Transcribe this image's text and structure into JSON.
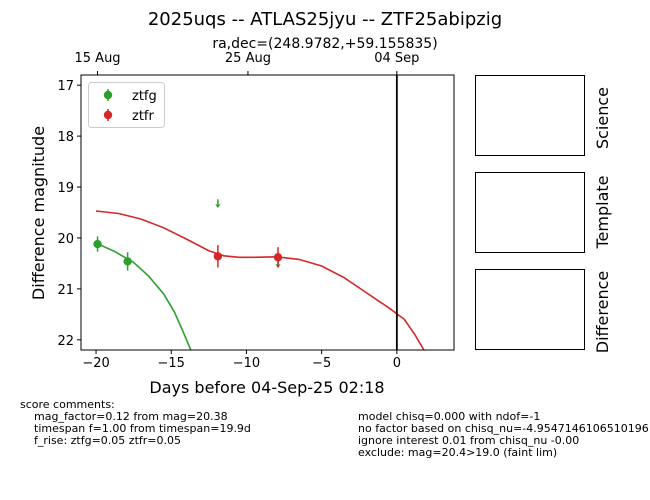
{
  "figure": {
    "title": "2025uqs -- ATLAS25jyu -- ZTF25abipzig",
    "subtitle": "ra,dec=(248.9782,+59.155835)",
    "panel_labels": [
      "Science",
      "Template",
      "Difference"
    ],
    "score_comments": {
      "header": "score comments:",
      "left": [
        "mag_factor=0.12 from mag=20.38",
        "timespan f=1.00 from timespan=19.9d",
        "f_rise: ztfg=0.05 ztfr=0.05"
      ],
      "right": [
        "model chisq=0.000 with ndof=-1",
        "no factor based on chisq_nu=-4.9547146106510196",
        "ignore interest 0.01 from chisq_nu -0.00",
        "exclude: mag=20.4>19.0 (faint lim)"
      ]
    }
  },
  "chart_data": {
    "type": "scatter",
    "xlabel": "Days before 04-Sep-25 02:18",
    "ylabel": "Difference magnitude",
    "xlim": [
      -21,
      3.8
    ],
    "ylim": [
      22.2,
      16.8
    ],
    "y_inverted": true,
    "x_ticks": [
      -20,
      -15,
      -10,
      -5,
      0
    ],
    "y_ticks": [
      17,
      18,
      19,
      20,
      21,
      22
    ],
    "top_axis_ticks": [
      {
        "x": -19.9,
        "label": "15 Aug"
      },
      {
        "x": -9.9,
        "label": "25 Aug"
      },
      {
        "x": 0.0,
        "label": "04 Sep"
      }
    ],
    "vertical_line_x": 0,
    "legend_position": "upper-left",
    "series": [
      {
        "name": "ztfg",
        "color": "#2ca02c",
        "points": [
          {
            "x": -19.9,
            "y": 20.12,
            "err": 0.15
          },
          {
            "x": -17.9,
            "y": 20.46,
            "err": 0.18
          }
        ],
        "upper_limits": [
          {
            "x": -11.9,
            "y": 19.32
          },
          {
            "x": -7.9,
            "y": 20.5
          }
        ],
        "model": [
          [
            -20.0,
            20.1
          ],
          [
            -18.8,
            20.26
          ],
          [
            -17.5,
            20.48
          ],
          [
            -16.5,
            20.75
          ],
          [
            -15.5,
            21.1
          ],
          [
            -14.8,
            21.45
          ],
          [
            -14.2,
            21.85
          ],
          [
            -13.7,
            22.2
          ]
        ]
      },
      {
        "name": "ztfr",
        "color": "#d62728",
        "points": [
          {
            "x": -11.9,
            "y": 20.36,
            "err": 0.22
          },
          {
            "x": -7.9,
            "y": 20.38,
            "err": 0.2
          }
        ],
        "upper_limits": [],
        "model": [
          [
            -20.0,
            19.47
          ],
          [
            -18.5,
            19.52
          ],
          [
            -17.0,
            19.63
          ],
          [
            -15.5,
            19.8
          ],
          [
            -14.0,
            20.02
          ],
          [
            -12.5,
            20.25
          ],
          [
            -11.5,
            20.35
          ],
          [
            -10.5,
            20.38
          ],
          [
            -9.5,
            20.38
          ],
          [
            -8.0,
            20.37
          ],
          [
            -6.5,
            20.42
          ],
          [
            -5.0,
            20.55
          ],
          [
            -3.5,
            20.78
          ],
          [
            -2.0,
            21.08
          ],
          [
            -0.5,
            21.38
          ],
          [
            0.5,
            21.6
          ],
          [
            1.2,
            21.9
          ],
          [
            1.8,
            22.2
          ]
        ]
      }
    ]
  }
}
